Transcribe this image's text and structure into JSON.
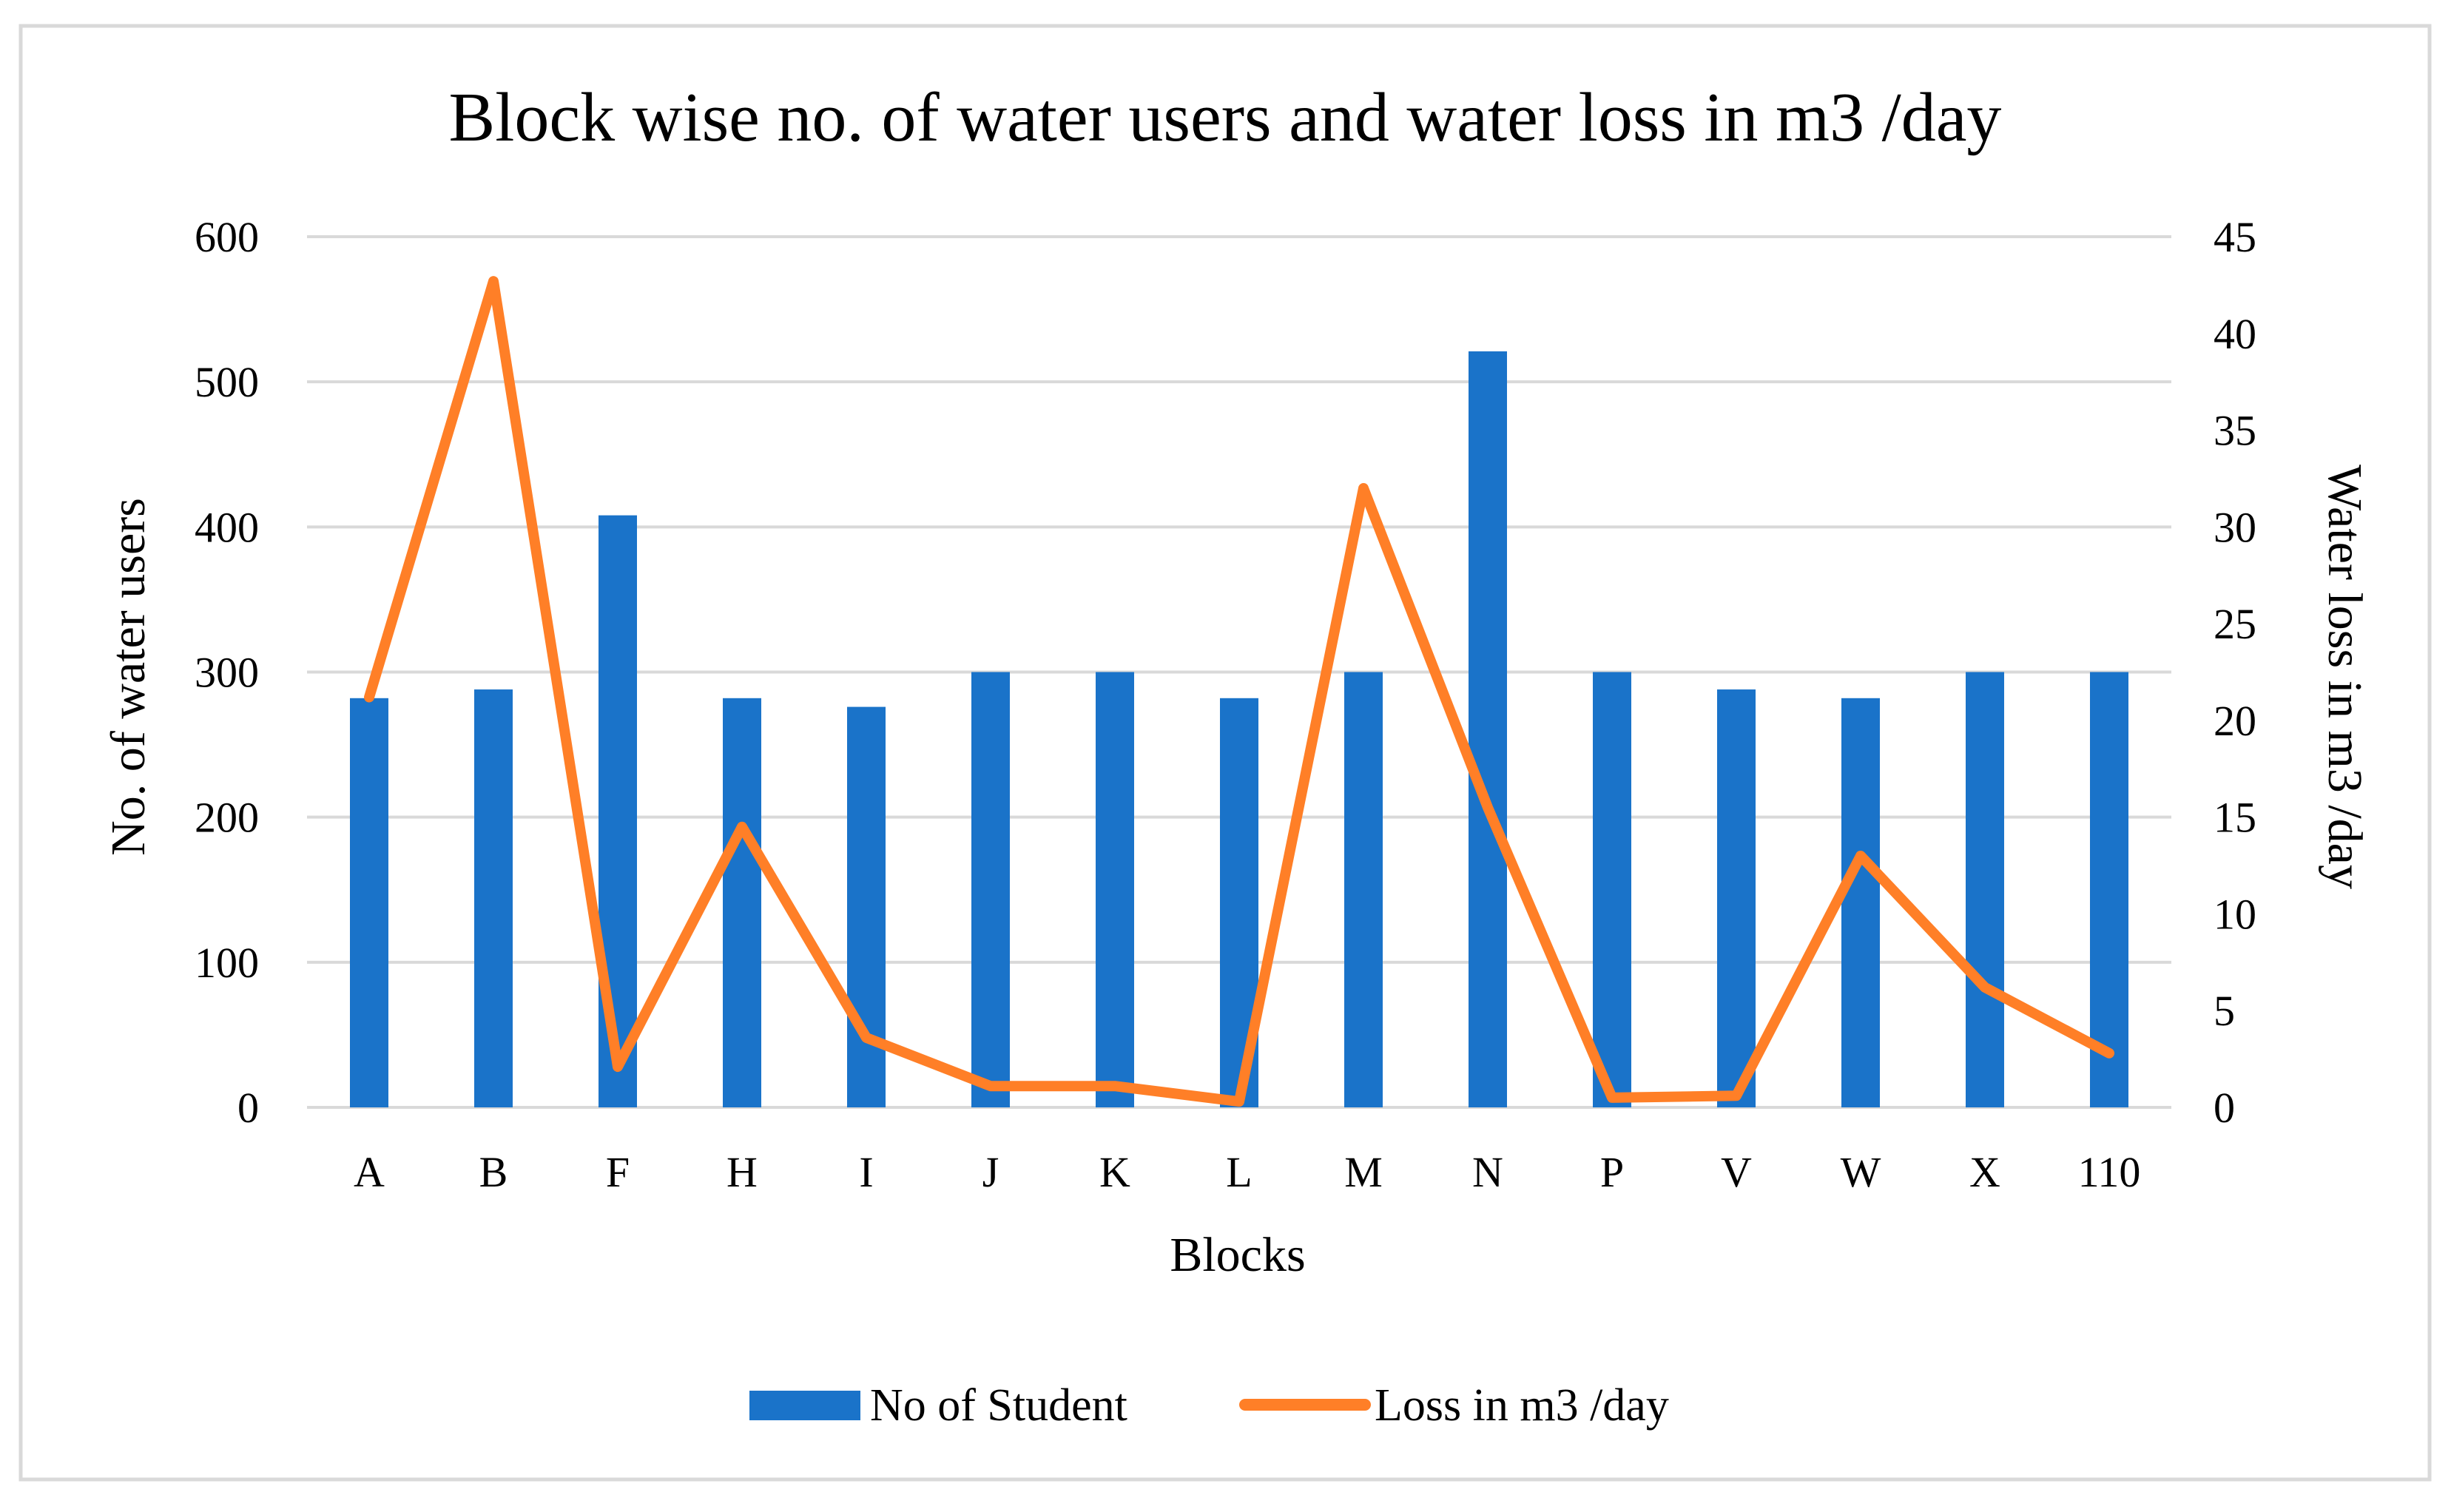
{
  "chart_data": {
    "type": "bar",
    "title": "Block wise no. of water users and water loss in m3 /day",
    "xlabel": "Blocks",
    "ylabel": "No. of water users",
    "y2label": "Water loss in m3 /day",
    "ylim": [
      0,
      600
    ],
    "y2lim": [
      0,
      45
    ],
    "yticks": [
      "0",
      "100",
      "200",
      "300",
      "400",
      "500",
      "600"
    ],
    "y2ticks": [
      "0",
      "5",
      "10",
      "15",
      "20",
      "25",
      "30",
      "35",
      "40",
      "45"
    ],
    "grid": true,
    "legend_position": "bottom-center",
    "categories": [
      "A",
      "B",
      "F",
      "H",
      "I",
      "J",
      "K",
      "L",
      "M",
      "N",
      "P",
      "V",
      "W",
      "X",
      "110"
    ],
    "series": [
      {
        "name": "No of Student",
        "kind": "bar",
        "axis": "left",
        "color": "#1A73C9",
        "values": [
          282,
          288,
          408,
          282,
          276,
          300,
          300,
          282,
          300,
          521,
          300,
          288,
          282,
          300,
          300
        ]
      },
      {
        "name": "Loss in m3 /day",
        "kind": "line",
        "axis": "right",
        "color": "#FF7F27",
        "values": [
          21.2,
          42.7,
          2.1,
          14.5,
          3.6,
          1.1,
          1.1,
          0.3,
          32.0,
          15.5,
          0.5,
          0.6,
          13.0,
          6.2,
          2.8
        ]
      }
    ]
  },
  "colors": {
    "border": "#D9D9D9",
    "grid": "#D9D9D9",
    "bar": "#1A73C9",
    "line": "#FF7F27"
  }
}
